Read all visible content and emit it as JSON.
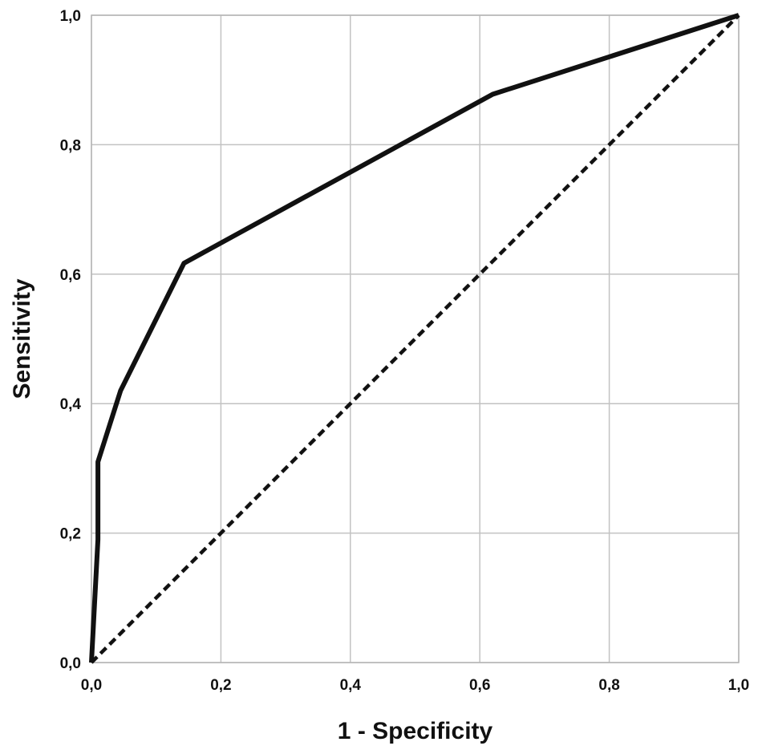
{
  "chart_data": {
    "type": "line",
    "title": "",
    "xlabel": "1 - Specificity",
    "ylabel": "Sensitivity",
    "xlim": [
      0,
      1
    ],
    "ylim": [
      0,
      1
    ],
    "x_ticks": [
      "0,0",
      "0,2",
      "0,4",
      "0,6",
      "0,8",
      "1,0"
    ],
    "y_ticks": [
      "0,0",
      "0,2",
      "0,4",
      "0,6",
      "0,8",
      "1,0"
    ],
    "grid": true,
    "legend": "none",
    "series": [
      {
        "style": "solid",
        "color": "#111111",
        "x": [
          0.0,
          0.01,
          0.01,
          0.045,
          0.143,
          0.62,
          1.0
        ],
        "y": [
          0.0,
          0.19,
          0.31,
          0.42,
          0.617,
          0.878,
          1.0
        ]
      },
      {
        "style": "dashed",
        "color": "#111111",
        "x": [
          0.0,
          1.0
        ],
        "y": [
          0.0,
          1.0
        ]
      }
    ]
  }
}
